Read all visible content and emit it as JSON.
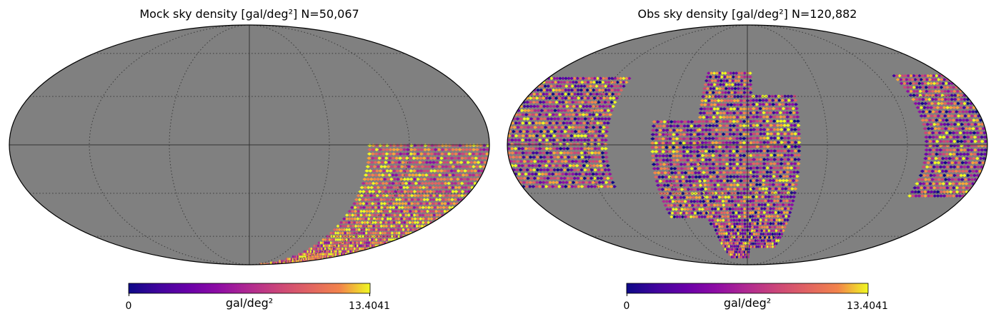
{
  "chart_data": [
    {
      "type": "heatmap",
      "projection": "mollweide",
      "title": "Mock sky density [gal/deg²]  N=50,067",
      "colormap": "plasma",
      "background_color": "#808080",
      "grid": true,
      "colorbar": {
        "label": "gal/deg²",
        "min": 0,
        "max": 13.4041,
        "min_label": "0",
        "max_label": "13.4041"
      },
      "coverage": [
        {
          "lon_range": [
            -180,
            -90
          ],
          "lat_range": [
            -90,
            0
          ]
        }
      ]
    },
    {
      "type": "heatmap",
      "projection": "mollweide",
      "title": "Obs sky density [gal/deg²]  N=120,882",
      "colormap": "plasma",
      "background_color": "#808080",
      "grid": true,
      "colorbar": {
        "label": "gal/deg²",
        "min": 0,
        "max": 13.4041,
        "min_label": "0",
        "max_label": "13.4041"
      },
      "coverage": [
        {
          "lon_range": [
            105,
            180
          ],
          "lat_range": [
            -27,
            43
          ]
        },
        {
          "lon_range": [
            -180,
            -135
          ],
          "lat_range": [
            -33,
            43
          ]
        },
        {
          "lon_range": [
            -4,
            36
          ],
          "lat_range": [
            -52,
            45
          ]
        },
        {
          "lon_range": [
            36,
            70
          ],
          "lat_range": [
            -47,
            15
          ]
        },
        {
          "lon_range": [
            -40,
            -4
          ],
          "lat_range": [
            -70,
            30
          ]
        },
        {
          "lon_range": [
            -4,
            33
          ],
          "lat_range": [
            -80,
            -52
          ]
        }
      ]
    }
  ]
}
